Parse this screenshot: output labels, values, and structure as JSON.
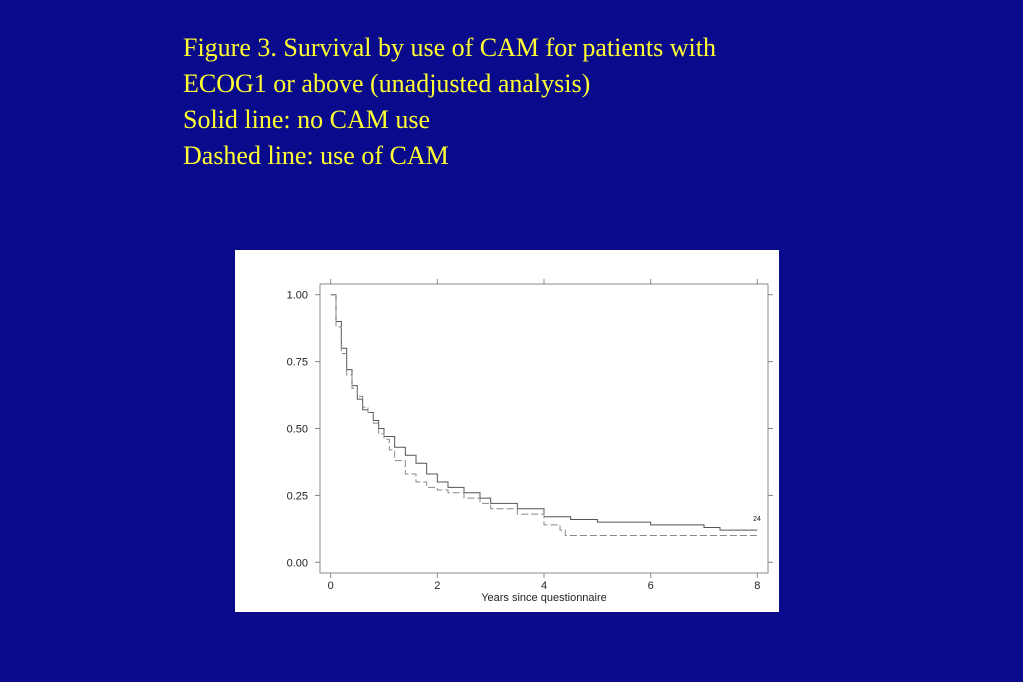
{
  "chart_data": {
    "type": "line",
    "title": "Figure 3. Survival by use of CAM for patients with ECOG1 or above (unadjusted analysis)",
    "x_label": "Years since questionnaire",
    "annotations": [
      "24"
    ],
    "series": [
      {
        "name": "Solid line: no CAM use",
        "color": "#555555",
        "dashed": false,
        "x": [
          0,
          0.1,
          0.2,
          0.3,
          0.4,
          0.5,
          0.6,
          0.7,
          0.8,
          0.9,
          1.0,
          1.2,
          1.4,
          1.6,
          1.8,
          2.0,
          2.2,
          2.5,
          2.8,
          3.0,
          3.5,
          4.0,
          4.5,
          5.0,
          6.0,
          7.0,
          7.3,
          8.0
        ],
        "values": [
          1.0,
          0.9,
          0.8,
          0.72,
          0.66,
          0.61,
          0.57,
          0.56,
          0.53,
          0.5,
          0.47,
          0.43,
          0.4,
          0.37,
          0.33,
          0.3,
          0.28,
          0.26,
          0.24,
          0.22,
          0.2,
          0.17,
          0.16,
          0.15,
          0.14,
          0.13,
          0.12,
          0.12
        ]
      },
      {
        "name": "Dashed line: use of CAM",
        "color": "#888888",
        "dashed": true,
        "x": [
          0,
          0.1,
          0.2,
          0.3,
          0.4,
          0.5,
          0.6,
          0.7,
          0.8,
          0.9,
          1.0,
          1.1,
          1.2,
          1.4,
          1.6,
          1.8,
          2.0,
          2.2,
          2.5,
          2.8,
          3.0,
          3.5,
          4.0,
          4.3,
          4.4,
          8.0
        ],
        "values": [
          1.0,
          0.88,
          0.78,
          0.7,
          0.65,
          0.62,
          0.58,
          0.56,
          0.52,
          0.48,
          0.46,
          0.42,
          0.38,
          0.33,
          0.3,
          0.28,
          0.27,
          0.26,
          0.24,
          0.22,
          0.2,
          0.18,
          0.14,
          0.12,
          0.1,
          0.1
        ]
      }
    ],
    "xlim": [
      -0.2,
      8.2
    ],
    "xticks": [
      0,
      2,
      4,
      6,
      8
    ],
    "ylim": [
      -0.04,
      1.04
    ],
    "yticks": [
      {
        "value": 0,
        "label": "0.00"
      },
      {
        "value": 0.25,
        "label": "0.25"
      },
      {
        "value": 0.5,
        "label": "0.50"
      },
      {
        "value": 0.75,
        "label": "0.75"
      },
      {
        "value": 1,
        "label": "1.00"
      }
    ]
  }
}
